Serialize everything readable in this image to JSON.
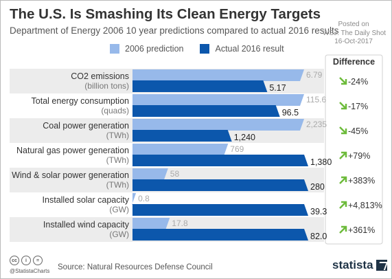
{
  "header": {
    "title": "The U.S. Is Smashing Its Clean Energy Targets",
    "subtitle": "Department of Energy 2006 10 year predictions compared to actual 2016 results",
    "posted_on": "Posted on",
    "posted_source": "WSJ: The Daily Shot",
    "posted_date": "16-Oct-2017"
  },
  "colors": {
    "prediction": "#97b9ea",
    "actual": "#0c57ac",
    "row_shade": "#ececec",
    "arrow": "#6dbb3b"
  },
  "icons": {
    "decrease": "arrow-down-right-icon",
    "increase": "arrow-up-right-icon"
  },
  "chart_data": {
    "type": "bar",
    "orientation": "horizontal",
    "legend": "top",
    "series": [
      {
        "name": "2006 prediction",
        "values": [
          6.79,
          115.6,
          2235,
          769,
          58,
          0.8,
          17.8
        ]
      },
      {
        "name": "Actual 2016 result",
        "values": [
          5.17,
          96.5,
          1240,
          1380,
          280,
          39.3,
          82.0
        ]
      }
    ],
    "value_labels": {
      "prediction": [
        "6.79",
        "115.6",
        "2,235",
        "769",
        "58",
        "0.8",
        "17.8"
      ],
      "actual": [
        "5.17",
        "96.5",
        "1,240",
        "1,380",
        "280",
        "39.3",
        "82.0"
      ]
    },
    "categories": [
      {
        "name": "CO2 emissions",
        "unit": "(billion tons)"
      },
      {
        "name": "Total energy consumption",
        "unit": "(quads)"
      },
      {
        "name": "Coal power generation",
        "unit": "(TWh)"
      },
      {
        "name": "Natural gas power generation",
        "unit": "(TWh)"
      },
      {
        "name": "Wind & solar power generation",
        "unit": "(TWh)"
      },
      {
        "name": "Installed solar capacity",
        "unit": "(GW)"
      },
      {
        "name": "Installed wind capacity",
        "unit": "(GW)"
      }
    ],
    "difference_title": "Difference",
    "differences": [
      "-24%",
      "-17%",
      "-45%",
      "+79%",
      "+383%",
      "+4,813%",
      "+361%"
    ]
  },
  "footer": {
    "handle": "@StatistaCharts",
    "source": "Source: Natural Resources Defense Council",
    "brand": "statista"
  }
}
